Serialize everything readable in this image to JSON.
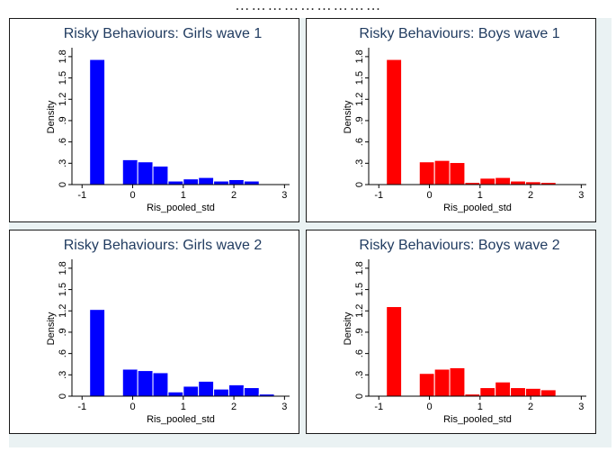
{
  "caption": "… … … … … … … … …",
  "chart_data": [
    {
      "type": "bar",
      "title": "Risky Behaviours: Girls wave 1",
      "xlabel": "Ris_pooled_std",
      "ylabel": "Density",
      "color": "#0000ff",
      "xlim": [
        -1.2,
        3.1
      ],
      "ylim": [
        0,
        1.9
      ],
      "xticks": [
        -1,
        0,
        1,
        2,
        3
      ],
      "yticks": [
        0,
        0.3,
        0.6,
        0.9,
        1.2,
        1.5,
        1.8
      ],
      "ytick_labels": [
        "0",
        ".3",
        ".6",
        ".9",
        "1.2",
        "1.5",
        "1.8"
      ],
      "bins": [
        {
          "x0": -0.85,
          "x1": -0.55,
          "value": 1.76
        },
        {
          "x0": -0.2,
          "x1": 0.1,
          "value": 0.35
        },
        {
          "x0": 0.1,
          "x1": 0.4,
          "value": 0.32
        },
        {
          "x0": 0.4,
          "x1": 0.7,
          "value": 0.26
        },
        {
          "x0": 0.7,
          "x1": 1.0,
          "value": 0.05
        },
        {
          "x0": 1.0,
          "x1": 1.3,
          "value": 0.08
        },
        {
          "x0": 1.3,
          "x1": 1.6,
          "value": 0.1
        },
        {
          "x0": 1.6,
          "x1": 1.9,
          "value": 0.05
        },
        {
          "x0": 1.9,
          "x1": 2.2,
          "value": 0.07
        },
        {
          "x0": 2.2,
          "x1": 2.5,
          "value": 0.05
        }
      ]
    },
    {
      "type": "bar",
      "title": "Risky Behaviours: Boys wave 1",
      "xlabel": "Ris_pooled_std",
      "ylabel": "Density",
      "color": "#ff0000",
      "xlim": [
        -1.2,
        3.1
      ],
      "ylim": [
        0,
        1.9
      ],
      "xticks": [
        -1,
        0,
        1,
        2,
        3
      ],
      "yticks": [
        0,
        0.3,
        0.6,
        0.9,
        1.2,
        1.5,
        1.8
      ],
      "ytick_labels": [
        "0",
        ".3",
        ".6",
        ".9",
        "1.2",
        "1.5",
        "1.8"
      ],
      "bins": [
        {
          "x0": -0.85,
          "x1": -0.55,
          "value": 1.76
        },
        {
          "x0": -0.2,
          "x1": 0.1,
          "value": 0.32
        },
        {
          "x0": 0.1,
          "x1": 0.4,
          "value": 0.34
        },
        {
          "x0": 0.4,
          "x1": 0.7,
          "value": 0.31
        },
        {
          "x0": 0.7,
          "x1": 1.0,
          "value": 0.03
        },
        {
          "x0": 1.0,
          "x1": 1.3,
          "value": 0.09
        },
        {
          "x0": 1.3,
          "x1": 1.6,
          "value": 0.1
        },
        {
          "x0": 1.6,
          "x1": 1.9,
          "value": 0.05
        },
        {
          "x0": 1.9,
          "x1": 2.2,
          "value": 0.04
        },
        {
          "x0": 2.2,
          "x1": 2.5,
          "value": 0.03
        }
      ]
    },
    {
      "type": "bar",
      "title": "Risky Behaviours: Girls wave 2",
      "xlabel": "Ris_pooled_std",
      "ylabel": "Density",
      "color": "#0000ff",
      "xlim": [
        -1.2,
        3.1
      ],
      "ylim": [
        0,
        1.9
      ],
      "xticks": [
        -1,
        0,
        1,
        2,
        3
      ],
      "yticks": [
        0,
        0.3,
        0.6,
        0.9,
        1.2,
        1.5,
        1.8
      ],
      "ytick_labels": [
        "0",
        ".3",
        ".6",
        ".9",
        "1.2",
        "1.5",
        "1.8"
      ],
      "bins": [
        {
          "x0": -0.85,
          "x1": -0.55,
          "value": 1.22
        },
        {
          "x0": -0.2,
          "x1": 0.1,
          "value": 0.38
        },
        {
          "x0": 0.1,
          "x1": 0.4,
          "value": 0.36
        },
        {
          "x0": 0.4,
          "x1": 0.7,
          "value": 0.33
        },
        {
          "x0": 0.7,
          "x1": 1.0,
          "value": 0.06
        },
        {
          "x0": 1.0,
          "x1": 1.3,
          "value": 0.14
        },
        {
          "x0": 1.3,
          "x1": 1.6,
          "value": 0.21
        },
        {
          "x0": 1.6,
          "x1": 1.9,
          "value": 0.1
        },
        {
          "x0": 1.9,
          "x1": 2.2,
          "value": 0.16
        },
        {
          "x0": 2.2,
          "x1": 2.5,
          "value": 0.12
        },
        {
          "x0": 2.5,
          "x1": 2.8,
          "value": 0.03
        }
      ]
    },
    {
      "type": "bar",
      "title": "Risky Behaviours: Boys wave 2",
      "xlabel": "Ris_pooled_std",
      "ylabel": "Density",
      "color": "#ff0000",
      "xlim": [
        -1.2,
        3.1
      ],
      "ylim": [
        0,
        1.9
      ],
      "xticks": [
        -1,
        0,
        1,
        2,
        3
      ],
      "yticks": [
        0,
        0.3,
        0.6,
        0.9,
        1.2,
        1.5,
        1.8
      ],
      "ytick_labels": [
        "0",
        ".3",
        ".6",
        ".9",
        "1.2",
        "1.5",
        "1.8"
      ],
      "bins": [
        {
          "x0": -0.85,
          "x1": -0.55,
          "value": 1.26
        },
        {
          "x0": -0.2,
          "x1": 0.1,
          "value": 0.32
        },
        {
          "x0": 0.1,
          "x1": 0.4,
          "value": 0.38
        },
        {
          "x0": 0.4,
          "x1": 0.7,
          "value": 0.4
        },
        {
          "x0": 0.7,
          "x1": 1.0,
          "value": 0.03
        },
        {
          "x0": 1.0,
          "x1": 1.3,
          "value": 0.12
        },
        {
          "x0": 1.3,
          "x1": 1.6,
          "value": 0.2
        },
        {
          "x0": 1.6,
          "x1": 1.9,
          "value": 0.12
        },
        {
          "x0": 1.9,
          "x1": 2.2,
          "value": 0.11
        },
        {
          "x0": 2.2,
          "x1": 2.5,
          "value": 0.09
        },
        {
          "x0": 2.5,
          "x1": 2.8,
          "value": 0.01
        }
      ]
    }
  ]
}
